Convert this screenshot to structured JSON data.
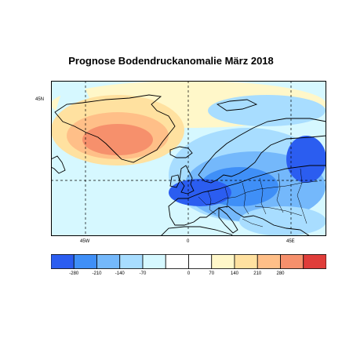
{
  "map": {
    "title": "Prognose Bodendruckanomalie März 2018",
    "lon_labels": [
      "45W",
      "0",
      "45E"
    ],
    "lat_labels": [
      "45N"
    ]
  },
  "colorbar": {
    "ticks": [
      "-280",
      "-210",
      "-140",
      "-70",
      "0",
      "70",
      "140",
      "210",
      "280"
    ],
    "colors": [
      "#2b5df0",
      "#3f8ff7",
      "#74b8fb",
      "#a8ddff",
      "#d6f8ff",
      "#ffffff",
      "#ffffff",
      "#fff7c9",
      "#ffe1a0",
      "#ffbf88",
      "#f6906c",
      "#e03d3a"
    ]
  },
  "chart_data": {
    "type": "heatmap",
    "title": "Prognose Bodendruckanomalie März 2018",
    "region": "North Atlantic / Europe",
    "xlabel": "",
    "ylabel": "",
    "x_ticks": [
      "45W",
      "0",
      "45E"
    ],
    "y_ticks": [
      "45N"
    ],
    "color_scale_ticks": [
      -280,
      -210,
      -140,
      -70,
      0,
      70,
      140,
      210,
      280
    ],
    "pattern": [
      {
        "feature": "positive anomaly center",
        "location": "south of Greenland",
        "value_range": [
          140,
          280
        ]
      },
      {
        "feature": "negative anomaly band",
        "location": "Bay of Biscay / France to Central Europe",
        "value_range": [
          -280,
          -140
        ]
      },
      {
        "feature": "negative anomaly",
        "location": "Eastern Europe / Russia",
        "value_range": [
          -280,
          -140
        ]
      }
    ]
  }
}
